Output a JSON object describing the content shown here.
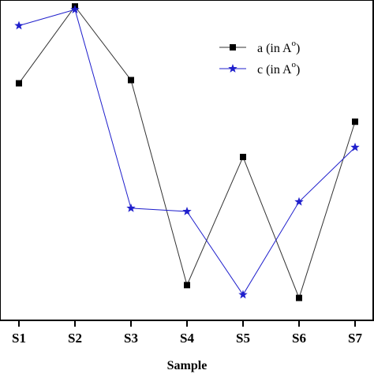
{
  "chart_data": {
    "type": "line",
    "title": "",
    "xlabel": "Sample",
    "ylabel": "",
    "categories": [
      "S1",
      "S2",
      "S3",
      "S4",
      "S5",
      "S6",
      "S7"
    ],
    "ylim": [
      0,
      100
    ],
    "grid": false,
    "legend_position": "top-right",
    "series": [
      {
        "name": "a (in A",
        "name_superscript": "o",
        "color": "#333333",
        "marker": "square-icon",
        "values": [
          74,
          98,
          75,
          11,
          51,
          7,
          62
        ]
      },
      {
        "name": "c (in A",
        "name_superscript": "o",
        "color": "#1f1fcc",
        "marker": "star-icon",
        "values": [
          92,
          97,
          35,
          34,
          8,
          37,
          54
        ]
      }
    ]
  }
}
